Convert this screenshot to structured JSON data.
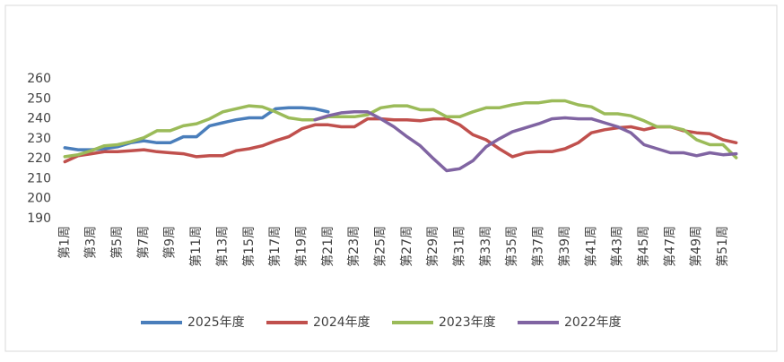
{
  "chart_data": {
    "type": "line",
    "categories": [
      "第1周",
      null,
      "第3周",
      null,
      "第5周",
      null,
      "第7周",
      null,
      "第9周",
      null,
      "第11周",
      null,
      "第13周",
      null,
      "第15周",
      null,
      "第17周",
      null,
      "第19周",
      null,
      "第21周",
      null,
      "第23周",
      null,
      "第25周",
      null,
      "第27周",
      null,
      "第29周",
      null,
      "第31周",
      null,
      "第33周",
      null,
      "第35周",
      null,
      "第37周",
      null,
      "第39周",
      null,
      "第41周",
      null,
      "第43周",
      null,
      "第45周",
      null,
      "第47周",
      null,
      "第49周",
      null,
      "第51周",
      null
    ],
    "ylim": [
      190,
      260
    ],
    "yticks": [
      190,
      200,
      210,
      220,
      230,
      240,
      250,
      260
    ],
    "grid": false,
    "legend": "bottom",
    "series": [
      {
        "name": "2025年度",
        "color": "#4a7ebb",
        "values": [
          225.5,
          224.5,
          224.5,
          225,
          226,
          228,
          229,
          228,
          228,
          231,
          231,
          236.5,
          238,
          239.5,
          240.5,
          240.5,
          245,
          245.5,
          245.5,
          245,
          243.5,
          null,
          null,
          null,
          null,
          null,
          null,
          null,
          null,
          null,
          null,
          null,
          null,
          null,
          null,
          null,
          null,
          null,
          null,
          null,
          null,
          null,
          null,
          null,
          null,
          null,
          null,
          null,
          null,
          null,
          null,
          null
        ]
      },
      {
        "name": "2024年度",
        "color": "#c0504d",
        "values": [
          218.5,
          221.5,
          222.5,
          223.5,
          223.5,
          224,
          224.5,
          223.5,
          223,
          222.5,
          221,
          221.5,
          221.5,
          224,
          225,
          226.5,
          229,
          231,
          235,
          237,
          237,
          236,
          236,
          240,
          240,
          239.5,
          239.5,
          239,
          240,
          240,
          237,
          232,
          229.5,
          225,
          221,
          223,
          223.5,
          223.5,
          225,
          228,
          233,
          234.5,
          235.5,
          236,
          234.5,
          236,
          236,
          234,
          233,
          232.5,
          229.5,
          228
        ]
      },
      {
        "name": "2023年度",
        "color": "#9bbb59",
        "values": [
          221,
          222,
          224,
          226.5,
          227,
          228.5,
          230.5,
          234,
          234,
          236.5,
          237.5,
          240,
          243.5,
          245,
          246.5,
          246,
          243.5,
          240.5,
          239.5,
          239.5,
          241,
          241,
          241,
          242,
          245.5,
          246.5,
          246.5,
          244.5,
          244.5,
          241,
          241,
          243.5,
          245.5,
          245.5,
          247,
          248,
          248,
          249,
          249,
          247,
          246,
          242.5,
          242.5,
          241.5,
          239,
          236,
          236,
          234.5,
          229.5,
          227,
          227,
          220.5
        ]
      },
      {
        "name": "2022年度",
        "color": "#8064a2",
        "values": [
          null,
          null,
          null,
          null,
          null,
          null,
          null,
          null,
          null,
          null,
          null,
          null,
          null,
          null,
          null,
          null,
          null,
          null,
          null,
          239.5,
          241.5,
          243,
          243.5,
          243.5,
          240,
          236,
          231,
          226.5,
          220,
          214,
          215,
          219,
          226,
          230,
          233.5,
          235.5,
          237.5,
          240,
          240.5,
          240,
          240,
          238,
          236,
          233,
          227,
          225,
          223,
          223,
          221.5,
          223,
          222,
          222.5
        ]
      }
    ]
  }
}
